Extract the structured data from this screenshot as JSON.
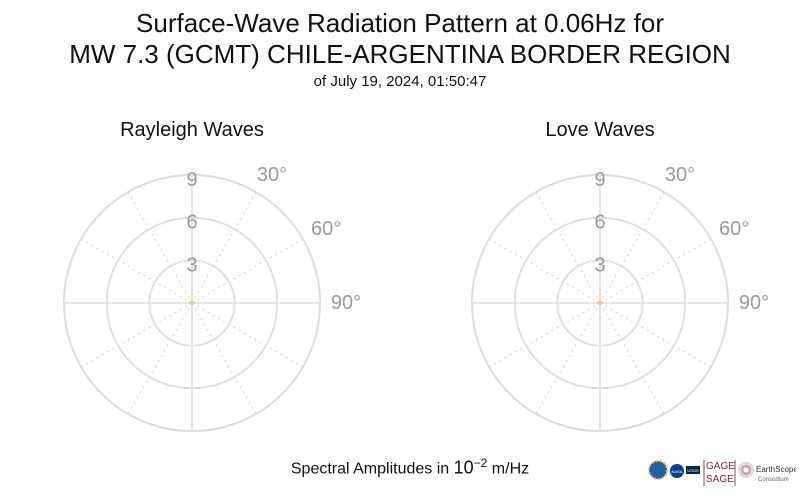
{
  "title": {
    "line1": "Surface-Wave Radiation Pattern at 0.06Hz for",
    "line2": "MW 7.3 (GCMT) CHILE-ARGENTINA BORDER REGION",
    "line3": "of July 19, 2024, 01:50:47"
  },
  "footer": {
    "prefix": "Spectral Amplitudes in ",
    "base": "10",
    "exponent": "−2",
    "unit": " m/Hz"
  },
  "logos": {
    "gage": "GAGE",
    "sage": "SAGE",
    "earthscope": "EarthScope",
    "consortium": "Consortium",
    "nasa": "NASA",
    "usgs": "USGS"
  },
  "colors": {
    "grid": "#dddddd",
    "tick_label": "#9b9b9b",
    "origin_marker": "#f5c87a"
  },
  "chart_data": [
    {
      "type": "polar",
      "title": "Rayleigh Waves",
      "r_ticks": [
        3,
        6,
        9
      ],
      "r_lim": [
        0,
        9
      ],
      "theta_ticks": [
        "30°",
        "60°",
        "90°"
      ],
      "radial_lines_deg": [
        0,
        30,
        60,
        90,
        120,
        150,
        180,
        210,
        240,
        270,
        300,
        330
      ],
      "theta_zero": "top",
      "theta_direction": "clockwise",
      "grid": true,
      "series": [
        {
          "values": []
        }
      ]
    },
    {
      "type": "polar",
      "title": "Love Waves",
      "r_ticks": [
        3,
        6,
        9
      ],
      "r_lim": [
        0,
        9
      ],
      "theta_ticks": [
        "30°",
        "60°",
        "90°"
      ],
      "radial_lines_deg": [
        0,
        30,
        60,
        90,
        120,
        150,
        180,
        210,
        240,
        270,
        300,
        330
      ],
      "theta_zero": "top",
      "theta_direction": "clockwise",
      "grid": true,
      "series": [
        {
          "values": []
        }
      ]
    }
  ]
}
